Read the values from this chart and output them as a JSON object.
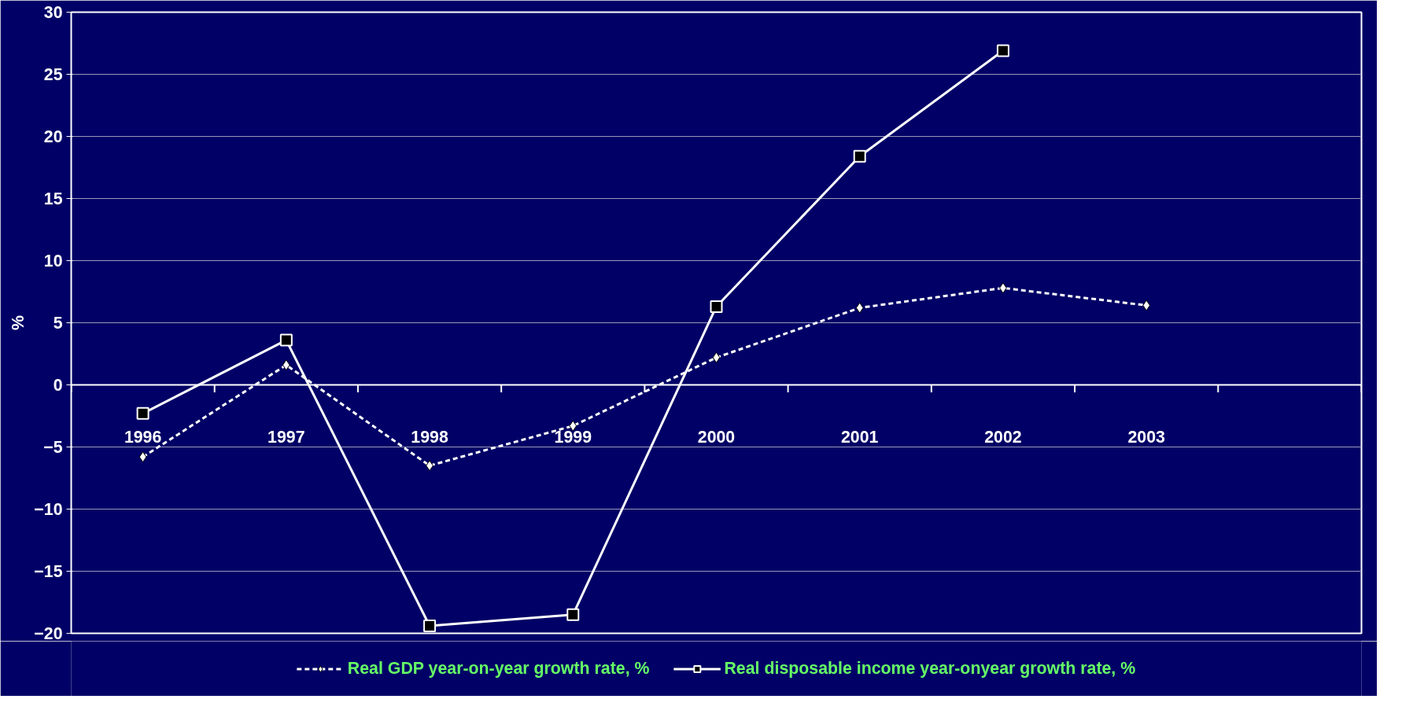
{
  "chart_data": {
    "type": "line",
    "ylabel": "%",
    "categories": [
      "1996",
      "1997",
      "1998",
      "1999",
      "2000",
      "2001",
      "2002",
      "2003",
      null
    ],
    "ylim": [
      -20,
      30
    ],
    "yticks": [
      -20,
      -15,
      -10,
      -5,
      0,
      5,
      10,
      15,
      20,
      25,
      30
    ],
    "grid": "y",
    "legend": "bottom",
    "series": [
      {
        "name": "Real GDP year-on-year growth rate, %",
        "color": "#ffffff",
        "marker": "diamond",
        "line_style": "dashed",
        "values": [
          -5.8,
          1.6,
          -6.5,
          -3.3,
          2.2,
          6.2,
          7.8,
          6.4,
          null
        ]
      },
      {
        "name": "Real disposable income year-onyear growth rate, %",
        "color": "#ffffff",
        "marker": "square",
        "line_style": "solid",
        "values": [
          -2.3,
          3.6,
          -19.4,
          -18.5,
          6.3,
          18.4,
          26.9,
          null,
          null
        ]
      }
    ]
  }
}
